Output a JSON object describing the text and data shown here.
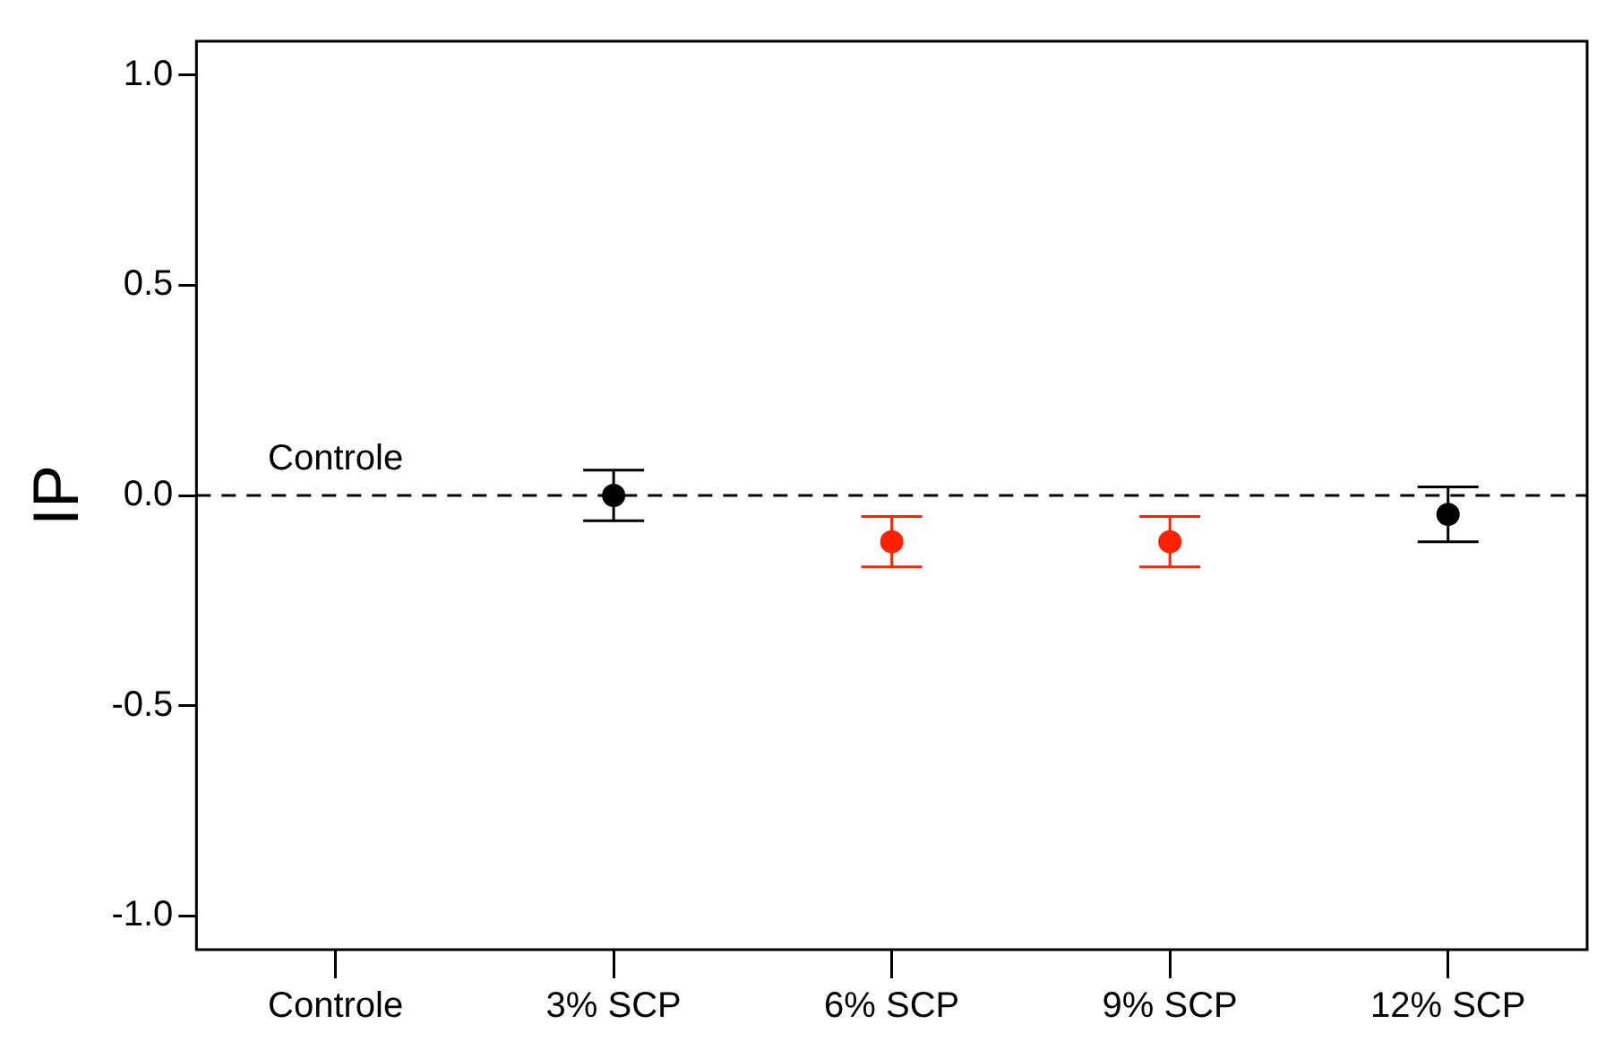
{
  "chart_data": {
    "type": "scatter",
    "ylabel": "IP",
    "categories": [
      "Controle",
      "3% SCP",
      "6% SCP",
      "9% SCP",
      "12% SCP"
    ],
    "values": [
      null,
      0,
      -0.11,
      -0.11,
      -0.045
    ],
    "colors": [
      null,
      "#000000",
      "#ff2200",
      "#ff2200",
      "#000000"
    ],
    "errors": [
      null,
      [
        -0.06,
        0.06
      ],
      [
        -0.17,
        -0.05
      ],
      [
        -0.17,
        -0.05
      ],
      [
        -0.11,
        0.02
      ]
    ],
    "ylim": [
      -1.08,
      1.08
    ],
    "yticks": [
      {
        "value": -1,
        "label": "-1.0"
      },
      -0.5,
      {
        "value": 0,
        "label": "0.0"
      },
      0.5,
      {
        "value": 1,
        "label": "1.0"
      }
    ],
    "ref_lines": [
      {
        "axis": "y",
        "value": 0,
        "label": "Controle",
        "line_style": "dashed",
        "color": "#000000"
      }
    ],
    "marker": "circle",
    "legend": false
  }
}
